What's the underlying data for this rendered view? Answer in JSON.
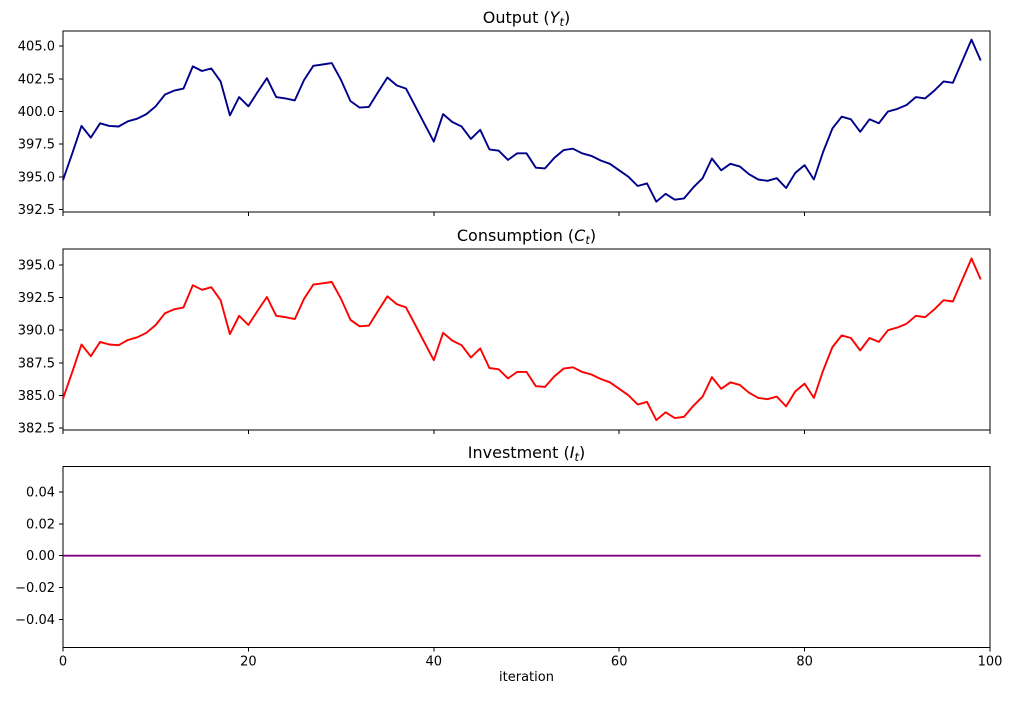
{
  "figure": {
    "background": "#ffffff"
  },
  "xaxis": {
    "label": "iteration",
    "tick_values": [
      0,
      20,
      40,
      60,
      80,
      100
    ],
    "tick_labels": [
      "0",
      "20",
      "40",
      "60",
      "80",
      "100"
    ],
    "xlim": [
      0,
      100
    ]
  },
  "chart_data": [
    {
      "id": "output",
      "type": "line",
      "title_prefix": "Output (",
      "title_var": "Y",
      "title_sub": "t",
      "title_suffix": ")",
      "color": "#00008B",
      "ylim": [
        392.31,
        406.16
      ],
      "ytick_values": [
        392.5,
        395.0,
        397.5,
        400.0,
        402.5,
        405.0
      ],
      "ytick_labels": [
        "392.5",
        "395.0",
        "397.5",
        "400.0",
        "402.5",
        "405.0"
      ],
      "x_start": 0,
      "x_step": 1,
      "values": [
        394.75,
        396.8,
        398.9,
        398.0,
        399.1,
        398.9,
        398.85,
        399.25,
        399.45,
        399.8,
        400.4,
        401.3,
        401.6,
        401.75,
        403.45,
        403.1,
        403.3,
        402.3,
        399.7,
        401.1,
        400.4,
        401.5,
        402.55,
        401.1,
        401.0,
        400.85,
        402.4,
        403.5,
        403.6,
        403.7,
        402.4,
        400.8,
        400.3,
        400.35,
        401.5,
        402.6,
        402.0,
        401.75,
        400.4,
        399.05,
        397.7,
        399.8,
        399.2,
        398.85,
        397.9,
        398.6,
        397.1,
        397.0,
        396.3,
        396.8,
        396.8,
        395.7,
        395.65,
        396.45,
        397.05,
        397.15,
        396.8,
        396.6,
        396.25,
        396.0,
        395.5,
        395.0,
        394.3,
        394.5,
        393.1,
        393.7,
        393.25,
        393.35,
        394.2,
        394.9,
        396.4,
        395.5,
        396.0,
        395.8,
        395.2,
        394.8,
        394.7,
        394.9,
        394.15,
        395.3,
        395.9,
        394.8,
        396.9,
        398.7,
        399.6,
        399.4,
        398.45,
        399.4,
        399.1,
        400.0,
        400.2,
        400.5,
        401.1,
        401.0,
        401.6,
        402.3,
        402.2,
        403.85,
        405.5,
        403.9
      ]
    },
    {
      "id": "consumption",
      "type": "line",
      "title_prefix": "Consumption (",
      "title_var": "C",
      "title_sub": "t",
      "title_suffix": ")",
      "color": "#FF0000",
      "ylim": [
        382.34,
        396.23
      ],
      "ytick_values": [
        382.5,
        385.0,
        387.5,
        390.0,
        392.5,
        395.0
      ],
      "ytick_labels": [
        "382.5",
        "385.0",
        "387.5",
        "390.0",
        "392.5",
        "395.0"
      ],
      "x_start": 0,
      "x_step": 1,
      "values": [
        384.75,
        386.8,
        388.9,
        388.0,
        389.1,
        388.9,
        388.85,
        389.25,
        389.45,
        389.8,
        390.4,
        391.3,
        391.6,
        391.75,
        393.45,
        393.1,
        393.3,
        392.3,
        389.7,
        391.1,
        390.4,
        391.5,
        392.55,
        391.1,
        391.0,
        390.85,
        392.4,
        393.5,
        393.6,
        393.7,
        392.4,
        390.8,
        390.3,
        390.35,
        391.5,
        392.6,
        392.0,
        391.75,
        390.4,
        389.05,
        387.7,
        389.8,
        389.2,
        388.85,
        387.9,
        388.6,
        387.1,
        387.0,
        386.3,
        386.8,
        386.8,
        385.7,
        385.65,
        386.45,
        387.05,
        387.15,
        386.8,
        386.6,
        386.25,
        386.0,
        385.5,
        385.0,
        384.3,
        384.5,
        383.1,
        383.7,
        383.25,
        383.35,
        384.2,
        384.9,
        386.4,
        385.5,
        386.0,
        385.8,
        385.2,
        384.8,
        384.7,
        384.9,
        384.15,
        385.3,
        385.9,
        384.8,
        386.9,
        388.7,
        389.6,
        389.4,
        388.45,
        389.4,
        389.1,
        390.0,
        390.2,
        390.5,
        391.1,
        391.0,
        391.6,
        392.3,
        392.2,
        393.85,
        395.5,
        393.9
      ]
    },
    {
      "id": "investment",
      "type": "line",
      "title_prefix": "Investment (",
      "title_var": "I",
      "title_sub": "t",
      "title_suffix": ")",
      "color": "#800080",
      "ylim": [
        -0.0577,
        0.0561
      ],
      "ytick_values": [
        -0.04,
        -0.02,
        0.0,
        0.02,
        0.04
      ],
      "ytick_labels": [
        "−0.04",
        "−0.02",
        "0.00",
        "0.02",
        "0.04"
      ],
      "x_start": 0,
      "x_step": 1,
      "constant_value": 0.0,
      "n_points": 100
    }
  ]
}
